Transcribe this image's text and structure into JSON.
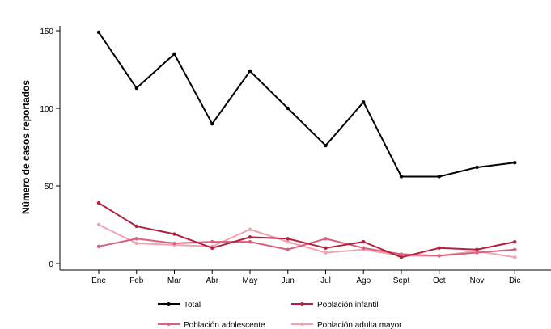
{
  "chart_data": {
    "type": "line",
    "title": "",
    "xlabel": "",
    "ylabel": "Número de casos reportados",
    "categories": [
      "Ene",
      "Feb",
      "Mar",
      "Abr",
      "May",
      "Jun",
      "Jul",
      "Ago",
      "Sept",
      "Oct",
      "Nov",
      "Dic"
    ],
    "yticks": [
      0,
      50,
      100,
      150
    ],
    "ylim": [
      0,
      155
    ],
    "grid": false,
    "legend_position": "bottom",
    "series": [
      {
        "name": "Total",
        "color": "#000000",
        "values": [
          149,
          113,
          135,
          90,
          124,
          100,
          76,
          104,
          56,
          56,
          62,
          65
        ]
      },
      {
        "name": "Población infantil",
        "color": "#b5203f",
        "values": [
          39,
          24,
          19,
          10,
          17,
          16,
          10,
          14,
          4,
          10,
          9,
          14
        ]
      },
      {
        "name": "Población adolescente",
        "color": "#d9607e",
        "values": [
          11,
          16,
          13,
          14,
          14,
          9,
          16,
          10,
          6,
          5,
          7,
          9
        ]
      },
      {
        "name": "Población adulta mayor",
        "color": "#f0a3b3",
        "values": [
          25,
          13,
          12,
          11,
          22,
          14,
          7,
          9,
          5,
          5,
          8,
          4
        ]
      }
    ]
  }
}
